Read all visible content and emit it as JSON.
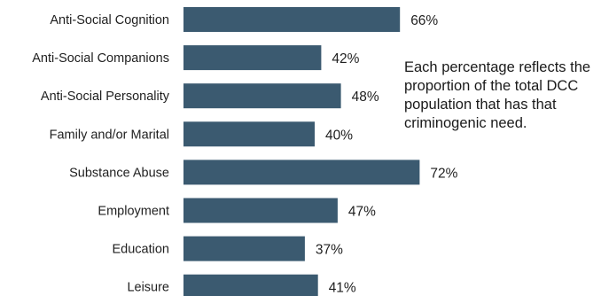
{
  "chart_data": {
    "type": "bar",
    "orientation": "horizontal",
    "categories": [
      "Anti-Social Cognition",
      "Anti-Social Companions",
      "Anti-Social Personality",
      "Family and/or Marital",
      "Substance Abuse",
      "Employment",
      "Education",
      "Leisure"
    ],
    "values": [
      66,
      42,
      48,
      40,
      72,
      47,
      37,
      41
    ],
    "value_labels": [
      "66%",
      "42%",
      "48%",
      "40%",
      "72%",
      "47%",
      "37%",
      "41%"
    ],
    "title": "",
    "xlabel": "",
    "ylabel": "",
    "xlim": [
      0,
      100
    ],
    "grid": false,
    "legend": "none",
    "bar_color": "#3b5a70",
    "annotation": "Each percentage reflects the\nproportion of the total DCC\npopulation that has that\ncriminogenic need."
  }
}
